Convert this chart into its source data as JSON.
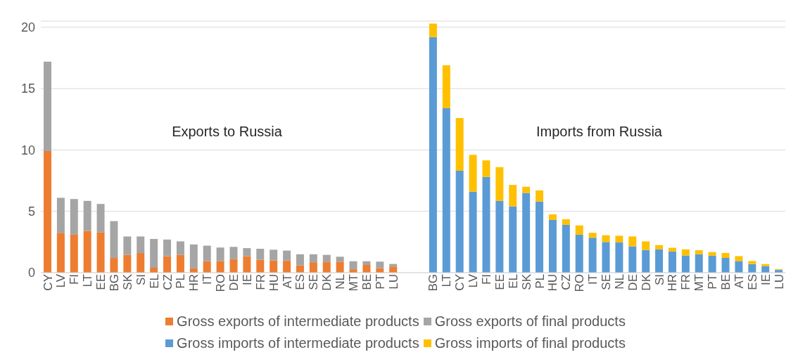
{
  "chart_data": {
    "type": "bar",
    "stacked": true,
    "categories": [
      "CY",
      "LV",
      "FI",
      "LT",
      "EE",
      "BG",
      "SK",
      "SI",
      "EL",
      "CZ",
      "PL",
      "HR",
      "IT",
      "RO",
      "DE",
      "IE",
      "FR",
      "HU",
      "AT",
      "ES",
      "SE",
      "DK",
      "NL",
      "MT",
      "BE",
      "PT",
      "LU",
      null,
      null,
      "BG",
      "LT",
      "CY",
      "LV",
      "FI",
      "EE",
      "EL",
      "SK",
      "PL",
      "HU",
      "CZ",
      "RO",
      "IT",
      "SE",
      "NL",
      "DE",
      "DK",
      "SI",
      "HR",
      "FR",
      "MT",
      "PT",
      "BE",
      "AT",
      "ES",
      "IE",
      "LU"
    ],
    "series": [
      {
        "name": "Gross exports of intermediate products",
        "color": "#ed7d31",
        "values": [
          9.9,
          3.25,
          3.1,
          3.4,
          3.3,
          1.2,
          1.45,
          1.6,
          0.4,
          1.35,
          1.45,
          0.35,
          0.95,
          0.95,
          1.1,
          1.35,
          1.05,
          1.0,
          1.0,
          0.6,
          0.85,
          0.9,
          0.9,
          0.28,
          0.63,
          0.37,
          0.5,
          null,
          null,
          null,
          null,
          null,
          null,
          null,
          null,
          null,
          null,
          null,
          null,
          null,
          null,
          null,
          null,
          null,
          null,
          null,
          null,
          null,
          null,
          null,
          null,
          null,
          null,
          null,
          null,
          null
        ]
      },
      {
        "name": "Gross exports of final products",
        "color": "#a5a5a5",
        "values": [
          7.3,
          2.85,
          2.9,
          2.45,
          2.3,
          3.0,
          1.5,
          1.35,
          2.35,
          1.35,
          1.1,
          1.95,
          1.25,
          1.1,
          1.0,
          0.65,
          0.9,
          0.87,
          0.8,
          0.9,
          0.65,
          0.55,
          0.4,
          0.65,
          0.3,
          0.53,
          0.21,
          null,
          null,
          null,
          null,
          null,
          null,
          null,
          null,
          null,
          null,
          null,
          null,
          null,
          null,
          null,
          null,
          null,
          null,
          null,
          null,
          null,
          null,
          null,
          null,
          null,
          null,
          null,
          null,
          null
        ]
      },
      {
        "name": "Gross imports of intermediate products",
        "color": "#5b9bd5",
        "values": [
          null,
          null,
          null,
          null,
          null,
          null,
          null,
          null,
          null,
          null,
          null,
          null,
          null,
          null,
          null,
          null,
          null,
          null,
          null,
          null,
          null,
          null,
          null,
          null,
          null,
          null,
          null,
          null,
          null,
          19.2,
          13.4,
          8.3,
          6.6,
          7.8,
          5.85,
          5.4,
          6.5,
          5.8,
          4.3,
          3.9,
          3.1,
          2.85,
          2.5,
          2.46,
          2.15,
          1.85,
          1.9,
          1.73,
          1.4,
          1.5,
          1.38,
          1.2,
          0.95,
          0.7,
          0.53,
          0.22
        ]
      },
      {
        "name": "Gross imports of final products",
        "color": "#ffc000",
        "values": [
          null,
          null,
          null,
          null,
          null,
          null,
          null,
          null,
          null,
          null,
          null,
          null,
          null,
          null,
          null,
          null,
          null,
          null,
          null,
          null,
          null,
          null,
          null,
          null,
          null,
          null,
          null,
          null,
          null,
          1.1,
          3.5,
          4.3,
          3.0,
          1.35,
          2.75,
          1.75,
          0.5,
          0.9,
          0.45,
          0.45,
          0.75,
          0.4,
          0.55,
          0.55,
          0.8,
          0.7,
          0.35,
          0.3,
          0.5,
          0.33,
          0.3,
          0.4,
          0.4,
          0.25,
          0.17,
          0.06
        ]
      }
    ],
    "ylim": [
      0,
      20.5
    ],
    "yticks": [
      0,
      5,
      10,
      15,
      20
    ],
    "grid": "y",
    "legend": "bottom",
    "annotations": [
      "Exports to Russia",
      "Imports from Russia"
    ]
  }
}
